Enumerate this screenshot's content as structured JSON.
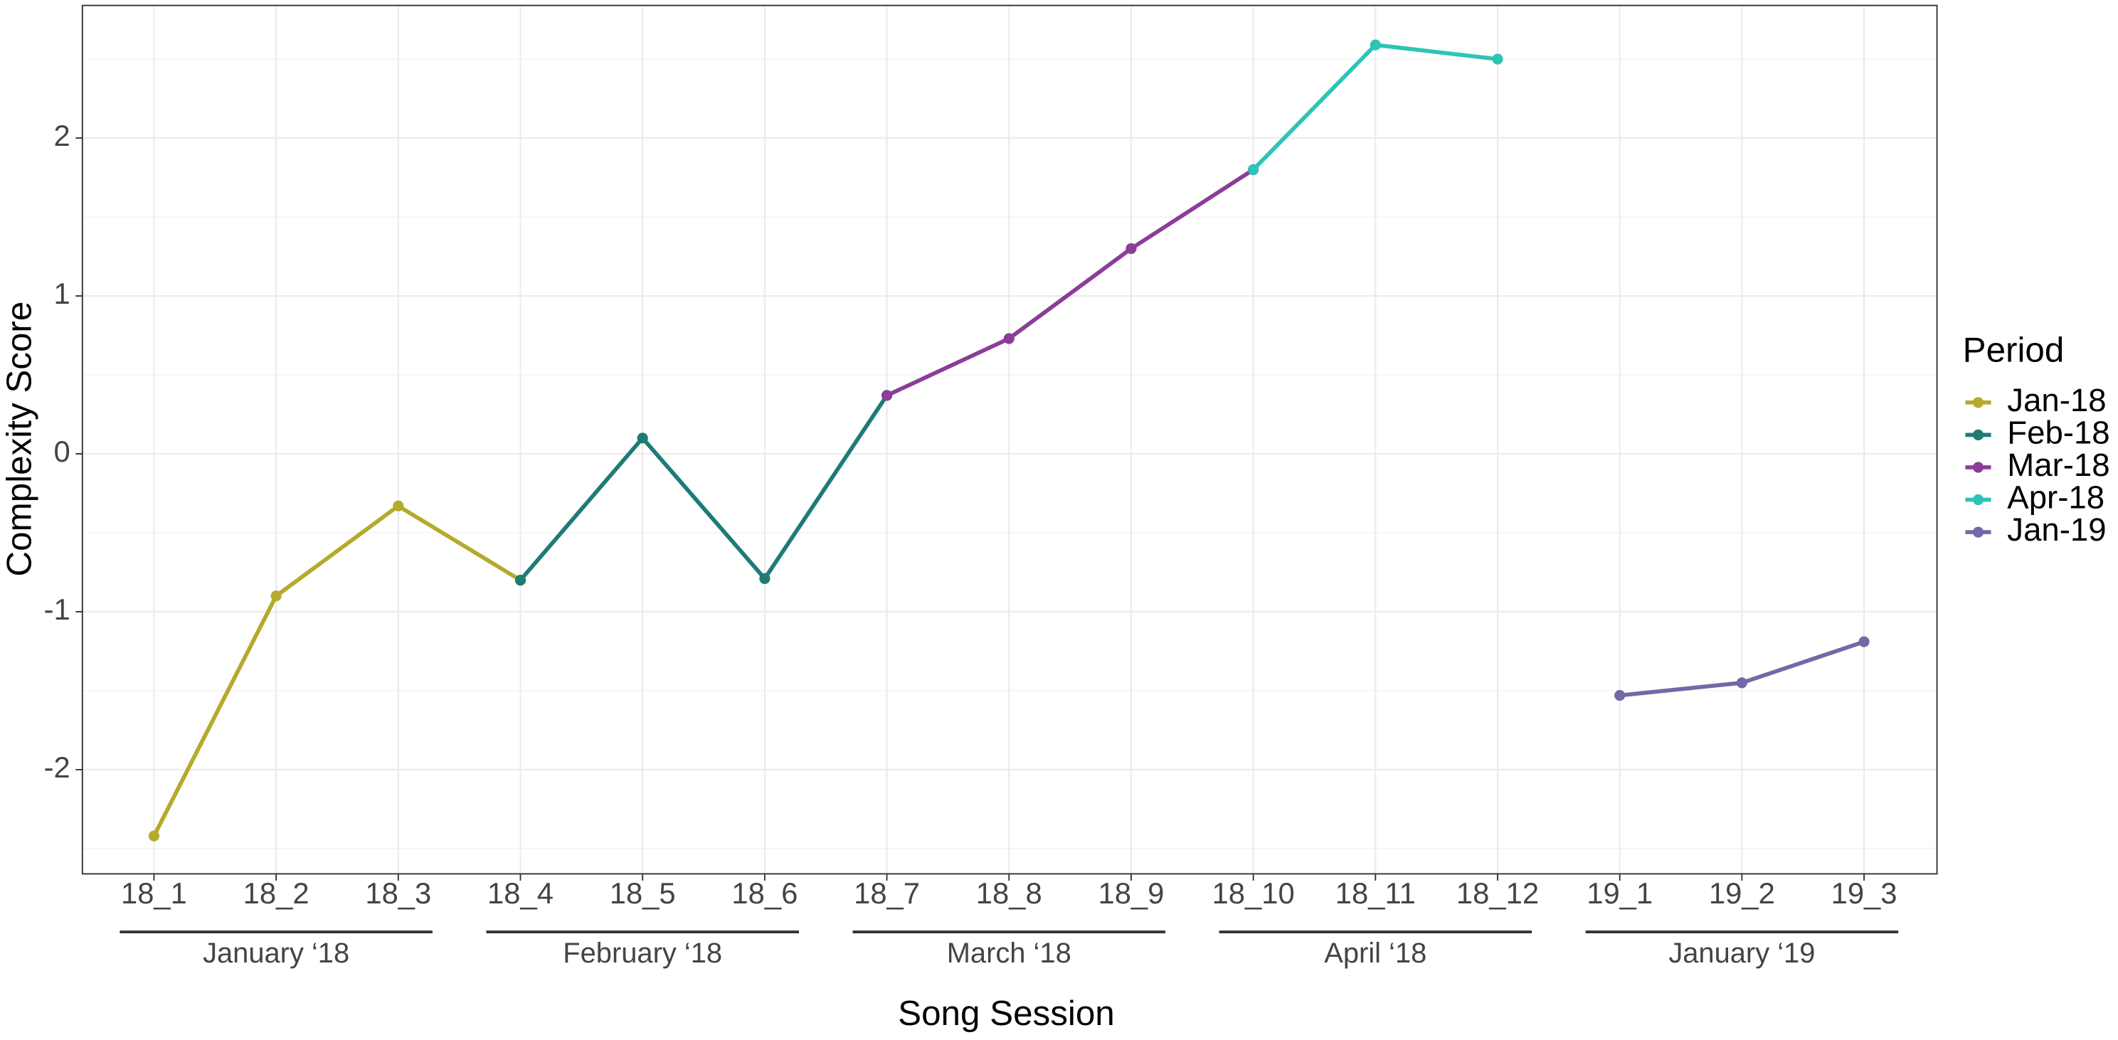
{
  "chart_data": {
    "type": "line",
    "x_label": "Song Session",
    "y_label": "Complexity Score",
    "legend_title": "Period",
    "legend_position": "right",
    "grid": true,
    "categories": [
      "18_1",
      "18_2",
      "18_3",
      "18_4",
      "18_5",
      "18_6",
      "18_7",
      "18_8",
      "18_9",
      "18_10",
      "18_11",
      "18_12",
      "19_1",
      "19_2",
      "19_3"
    ],
    "groups": [
      {
        "label": "January ‘18",
        "categories": [
          "18_1",
          "18_2",
          "18_3"
        ]
      },
      {
        "label": "February ‘18",
        "categories": [
          "18_4",
          "18_5",
          "18_6"
        ]
      },
      {
        "label": "March ‘18",
        "categories": [
          "18_7",
          "18_8",
          "18_9"
        ]
      },
      {
        "label": "April ‘18",
        "categories": [
          "18_10",
          "18_11",
          "18_12"
        ]
      },
      {
        "label": "January ‘19",
        "categories": [
          "19_1",
          "19_2",
          "19_3"
        ]
      }
    ],
    "series": [
      {
        "name": "Jan-18",
        "color": "#b5aa2b",
        "values": [
          -2.42,
          -0.9,
          -0.33,
          -0.8,
          null,
          null,
          null,
          null,
          null,
          null,
          null,
          null,
          null,
          null,
          null
        ]
      },
      {
        "name": "Feb-18",
        "color": "#1e7b75",
        "values": [
          null,
          null,
          null,
          -0.8,
          0.1,
          -0.79,
          0.37,
          null,
          null,
          null,
          null,
          null,
          null,
          null,
          null
        ]
      },
      {
        "name": "Mar-18",
        "color": "#8b3d98",
        "values": [
          null,
          null,
          null,
          null,
          null,
          null,
          0.37,
          0.73,
          1.3,
          1.8,
          null,
          null,
          null,
          null,
          null
        ]
      },
      {
        "name": "Apr-18",
        "color": "#2ec4b6",
        "values": [
          null,
          null,
          null,
          null,
          null,
          null,
          null,
          null,
          null,
          1.8,
          2.59,
          2.5,
          null,
          null,
          null
        ]
      },
      {
        "name": "Jan-19",
        "color": "#7468a8",
        "values": [
          null,
          null,
          null,
          null,
          null,
          null,
          null,
          null,
          null,
          null,
          null,
          null,
          -1.53,
          -1.45,
          -1.19
        ]
      }
    ],
    "ylim": [
      -2.66,
      2.84
    ],
    "yticks": [
      -2,
      -1,
      0,
      1,
      2
    ]
  }
}
